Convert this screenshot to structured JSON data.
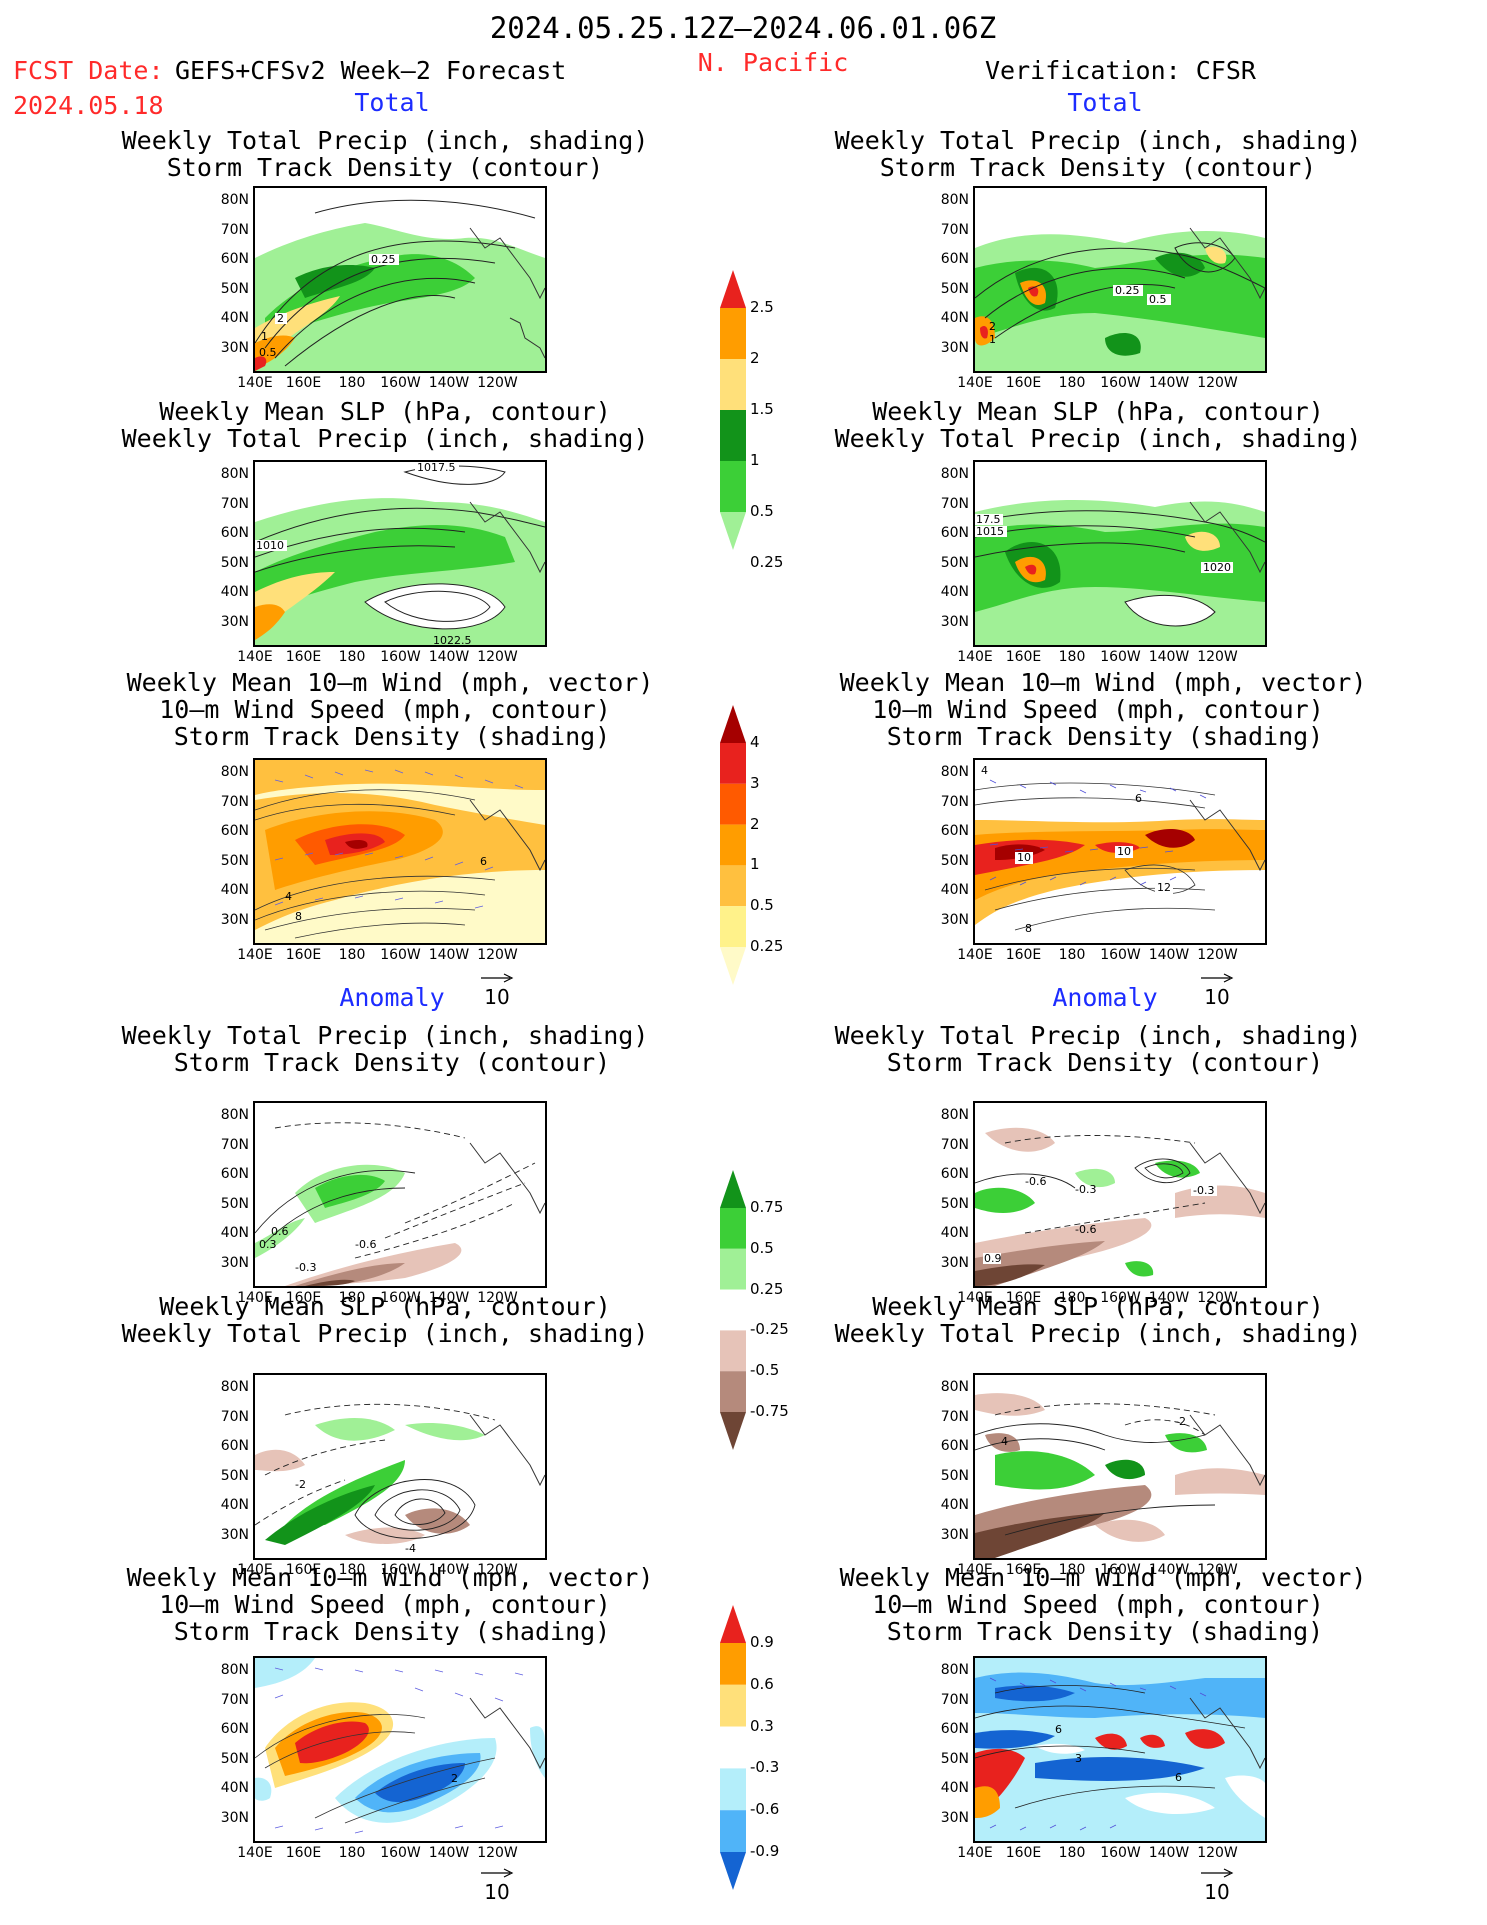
{
  "header": {
    "period": "2024.05.25.12Z–2024.06.01.06Z",
    "fcst_label": "FCST Date:",
    "fcst_model": "GEFS+CFSv2 Week–2 Forecast",
    "fcst_date": "2024.05.18",
    "region": "N. Pacific",
    "verification": "Verification: CFSR"
  },
  "sections": {
    "total": "Total",
    "anomaly": "Anomaly"
  },
  "axes": {
    "lat_labels": [
      "80N",
      "70N",
      "60N",
      "50N",
      "40N",
      "30N"
    ],
    "lon_labels": [
      "140E",
      "160E",
      "180",
      "160W",
      "140W",
      "120W"
    ]
  },
  "titles": {
    "precip_storm": [
      "Weekly Total Precip (inch, shading)",
      "Storm Track Density (contour)"
    ],
    "slp_precip": [
      "Weekly Mean SLP (hPa, contour)",
      "Weekly Total Precip (inch, shading)"
    ],
    "wind_storm": [
      "Weekly Mean 10–m Wind (mph, vector)",
      "10–m Wind Speed (mph, contour)",
      "Storm Track Density (shading)"
    ]
  },
  "vector_ref": "10",
  "colorbars": {
    "precip_total": {
      "labels": [
        "2.5",
        "2",
        "1.5",
        "1",
        "0.5",
        "0.25"
      ],
      "colors": [
        "#e8221e",
        "#ff9d00",
        "#ffe07a",
        "#12931a",
        "#3ccf37",
        "#a0f096"
      ]
    },
    "storm_total": {
      "labels": [
        "4",
        "3",
        "2",
        "1",
        "0.5",
        "0.25"
      ],
      "colors": [
        "#a50000",
        "#e8221e",
        "#ff5a00",
        "#ff9d00",
        "#ffc03f",
        "#fff28a",
        "#fffac8"
      ]
    },
    "precip_anom": {
      "labels": [
        "0.75",
        "0.5",
        "0.25",
        "-0.25",
        "-0.5",
        "-0.75"
      ],
      "colors": [
        "#12931a",
        "#3ccf37",
        "#a0f096",
        "#ffffff",
        "#e6c3b8",
        "#b58a7c",
        "#6e4535"
      ]
    },
    "storm_anom": {
      "labels": [
        "0.9",
        "0.6",
        "0.3",
        "-0.3",
        "-0.6",
        "-0.9"
      ],
      "colors": [
        "#e8221e",
        "#ff9d00",
        "#ffe07a",
        "#ffffff",
        "#b4eefa",
        "#50b4f8",
        "#1464d2"
      ]
    }
  },
  "panel_labels": {
    "p1": [
      "0.25",
      "2",
      "1",
      "0.5"
    ],
    "p2": [
      "0.25",
      "0.5",
      "2",
      "1"
    ],
    "p3": [
      "1017.5",
      "1010",
      "1022.5"
    ],
    "p4": [
      "17.5",
      "1015",
      "1020"
    ],
    "p5": [
      "4",
      "6",
      "8"
    ],
    "p6": [
      "4",
      "10",
      "10",
      "12",
      "8",
      "6"
    ],
    "p7": [
      "0.6",
      "0.3",
      "-0.6",
      "-0.3"
    ],
    "p8": [
      "-0.6",
      "-0.3",
      "-0.3",
      "0.9",
      "-0.6"
    ],
    "p9": [
      "-2",
      "-4"
    ],
    "p10": [
      "-2",
      "4"
    ],
    "p11": [
      "2"
    ],
    "p12": [
      "6",
      "3",
      "6"
    ]
  }
}
